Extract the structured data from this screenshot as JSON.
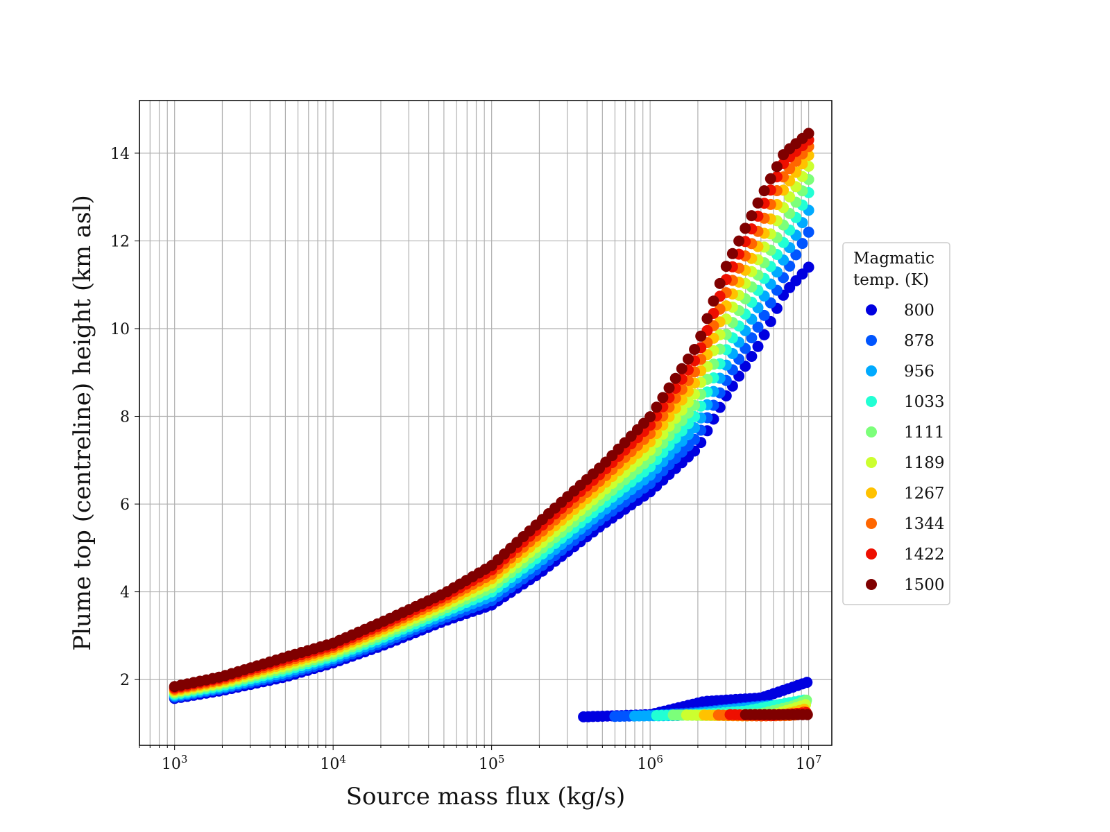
{
  "chart_data": {
    "type": "scatter",
    "xlabel": "Source mass flux (kg/s)",
    "ylabel": "Plume top (centreline) height (km asl)",
    "xscale": "log",
    "xlim": [
      600,
      14000000
    ],
    "ylim": [
      0.5,
      15.2
    ],
    "x_ticks": [
      {
        "value": 1000,
        "base": "10",
        "exp": "3"
      },
      {
        "value": 10000,
        "base": "10",
        "exp": "4"
      },
      {
        "value": 100000,
        "base": "10",
        "exp": "5"
      },
      {
        "value": 1000000,
        "base": "10",
        "exp": "6"
      },
      {
        "value": 10000000,
        "base": "10",
        "exp": "7"
      }
    ],
    "y_ticks": [
      2,
      4,
      6,
      8,
      10,
      12,
      14
    ],
    "grid": true,
    "legend": {
      "title_lines": [
        "Magmatic",
        "temp. (K)"
      ],
      "placement": "outside-right"
    },
    "series": [
      {
        "name": "800",
        "color": "#0000e0",
        "main": [
          [
            1000,
            1.57
          ],
          [
            2000,
            1.75
          ],
          [
            5000,
            2.06
          ],
          [
            10000,
            2.38
          ],
          [
            20000,
            2.76
          ],
          [
            50000,
            3.33
          ],
          [
            100000,
            3.7
          ],
          [
            200000,
            4.42
          ],
          [
            500000,
            5.53
          ],
          [
            1000000,
            6.28
          ],
          [
            2000000,
            7.28
          ],
          [
            3000000,
            8.45
          ],
          [
            5000000,
            9.7
          ],
          [
            7000000,
            10.8
          ],
          [
            10000000,
            11.4
          ]
        ],
        "branch": [
          [
            380000,
            1.15
          ],
          [
            1000000,
            1.2
          ],
          [
            2200000,
            1.5
          ],
          [
            5000000,
            1.58
          ],
          [
            10000000,
            1.95
          ]
        ]
      },
      {
        "name": "878",
        "color": "#0055ff",
        "main": [
          [
            1000,
            1.6
          ],
          [
            2000,
            1.79
          ],
          [
            5000,
            2.11
          ],
          [
            10000,
            2.43
          ],
          [
            20000,
            2.82
          ],
          [
            50000,
            3.4
          ],
          [
            100000,
            3.8
          ],
          [
            200000,
            4.55
          ],
          [
            500000,
            5.68
          ],
          [
            1000000,
            6.47
          ],
          [
            2000000,
            7.55
          ],
          [
            3000000,
            8.8
          ],
          [
            5000000,
            10.15
          ],
          [
            7000000,
            11.2
          ],
          [
            10000000,
            12.2
          ]
        ],
        "branch": [
          [
            600000,
            1.16
          ],
          [
            1000000,
            1.18
          ],
          [
            2000000,
            1.25
          ],
          [
            5000000,
            1.4
          ],
          [
            10000000,
            1.45
          ]
        ]
      },
      {
        "name": "956",
        "color": "#00aaff",
        "main": [
          [
            1000,
            1.63
          ],
          [
            2000,
            1.82
          ],
          [
            5000,
            2.16
          ],
          [
            10000,
            2.48
          ],
          [
            20000,
            2.88
          ],
          [
            50000,
            3.47
          ],
          [
            100000,
            3.9
          ],
          [
            200000,
            4.68
          ],
          [
            500000,
            5.83
          ],
          [
            1000000,
            6.66
          ],
          [
            2000000,
            7.82
          ],
          [
            3000000,
            9.15
          ],
          [
            5000000,
            10.6
          ],
          [
            7000000,
            11.6
          ],
          [
            10000000,
            12.7
          ]
        ],
        "branch": [
          [
            800000,
            1.17
          ],
          [
            1500000,
            1.18
          ],
          [
            3000000,
            1.3
          ],
          [
            5000000,
            1.38
          ],
          [
            10000000,
            1.5
          ]
        ]
      },
      {
        "name": "1033",
        "color": "#22ffd4",
        "main": [
          [
            1000,
            1.66
          ],
          [
            2000,
            1.86
          ],
          [
            5000,
            2.21
          ],
          [
            10000,
            2.53
          ],
          [
            20000,
            2.94
          ],
          [
            50000,
            3.54
          ],
          [
            100000,
            4.0
          ],
          [
            200000,
            4.81
          ],
          [
            500000,
            5.98
          ],
          [
            1000000,
            6.85
          ],
          [
            2000000,
            8.08
          ],
          [
            3000000,
            9.5
          ],
          [
            5000000,
            11.0
          ],
          [
            7000000,
            12.0
          ],
          [
            10000000,
            13.1
          ]
        ],
        "branch": [
          [
            1100000,
            1.18
          ],
          [
            2000000,
            1.2
          ],
          [
            4000000,
            1.28
          ],
          [
            7000000,
            1.45
          ],
          [
            10000000,
            1.55
          ]
        ]
      },
      {
        "name": "1111",
        "color": "#7cff7a",
        "main": [
          [
            1000,
            1.69
          ],
          [
            2000,
            1.9
          ],
          [
            5000,
            2.26
          ],
          [
            10000,
            2.58
          ],
          [
            20000,
            3.0
          ],
          [
            50000,
            3.61
          ],
          [
            100000,
            4.1
          ],
          [
            200000,
            4.94
          ],
          [
            500000,
            6.13
          ],
          [
            1000000,
            7.04
          ],
          [
            2000000,
            8.34
          ],
          [
            3000000,
            9.85
          ],
          [
            5000000,
            11.35
          ],
          [
            7000000,
            12.4
          ],
          [
            10000000,
            13.4
          ]
        ],
        "branch": [
          [
            1400000,
            1.19
          ],
          [
            2500000,
            1.18
          ],
          [
            5000000,
            1.22
          ],
          [
            8000000,
            1.4
          ],
          [
            10000000,
            1.55
          ]
        ]
      },
      {
        "name": "1189",
        "color": "#ccff2f",
        "main": [
          [
            1000,
            1.72
          ],
          [
            2000,
            1.93
          ],
          [
            5000,
            2.31
          ],
          [
            10000,
            2.63
          ],
          [
            20000,
            3.06
          ],
          [
            50000,
            3.68
          ],
          [
            100000,
            4.2
          ],
          [
            200000,
            5.07
          ],
          [
            500000,
            6.28
          ],
          [
            1000000,
            7.23
          ],
          [
            2000000,
            8.6
          ],
          [
            3000000,
            10.2
          ],
          [
            5000000,
            11.7
          ],
          [
            7000000,
            12.8
          ],
          [
            10000000,
            13.7
          ]
        ],
        "branch": [
          [
            1700000,
            1.19
          ],
          [
            3000000,
            1.18
          ],
          [
            6000000,
            1.2
          ],
          [
            10000000,
            1.45
          ]
        ]
      },
      {
        "name": "1267",
        "color": "#ffc200",
        "main": [
          [
            1000,
            1.75
          ],
          [
            2000,
            1.97
          ],
          [
            5000,
            2.36
          ],
          [
            10000,
            2.68
          ],
          [
            20000,
            3.12
          ],
          [
            50000,
            3.75
          ],
          [
            100000,
            4.3
          ],
          [
            200000,
            5.2
          ],
          [
            500000,
            6.43
          ],
          [
            1000000,
            7.42
          ],
          [
            2000000,
            8.86
          ],
          [
            3000000,
            10.5
          ],
          [
            5000000,
            12.0
          ],
          [
            7000000,
            13.2
          ],
          [
            10000000,
            13.95
          ]
        ],
        "branch": [
          [
            2200000,
            1.19
          ],
          [
            4000000,
            1.17
          ],
          [
            7000000,
            1.2
          ],
          [
            10000000,
            1.35
          ]
        ]
      },
      {
        "name": "1344",
        "color": "#ff6600",
        "main": [
          [
            1000,
            1.78
          ],
          [
            2000,
            2.0
          ],
          [
            5000,
            2.41
          ],
          [
            10000,
            2.73
          ],
          [
            20000,
            3.18
          ],
          [
            50000,
            3.82
          ],
          [
            100000,
            4.4
          ],
          [
            200000,
            5.33
          ],
          [
            500000,
            6.58
          ],
          [
            1000000,
            7.61
          ],
          [
            2000000,
            9.12
          ],
          [
            3000000,
            10.8
          ],
          [
            5000000,
            12.35
          ],
          [
            7000000,
            13.5
          ],
          [
            10000000,
            14.15
          ]
        ],
        "branch": [
          [
            2700000,
            1.19
          ],
          [
            5000000,
            1.17
          ],
          [
            8000000,
            1.18
          ],
          [
            10000000,
            1.3
          ]
        ]
      },
      {
        "name": "1422",
        "color": "#ee0f00",
        "main": [
          [
            1000,
            1.81
          ],
          [
            2000,
            2.04
          ],
          [
            5000,
            2.46
          ],
          [
            10000,
            2.78
          ],
          [
            20000,
            3.24
          ],
          [
            50000,
            3.89
          ],
          [
            100000,
            4.5
          ],
          [
            200000,
            5.46
          ],
          [
            500000,
            6.73
          ],
          [
            1000000,
            7.8
          ],
          [
            2000000,
            9.38
          ],
          [
            3000000,
            11.1
          ],
          [
            5000000,
            12.7
          ],
          [
            7000000,
            13.8
          ],
          [
            10000000,
            14.3
          ]
        ],
        "branch": [
          [
            3200000,
            1.2
          ],
          [
            6000000,
            1.18
          ],
          [
            10000000,
            1.25
          ]
        ]
      },
      {
        "name": "1500",
        "color": "#7f0000",
        "main": [
          [
            1000,
            1.84
          ],
          [
            2000,
            2.07
          ],
          [
            5000,
            2.51
          ],
          [
            10000,
            2.83
          ],
          [
            20000,
            3.3
          ],
          [
            50000,
            3.96
          ],
          [
            100000,
            4.6
          ],
          [
            200000,
            5.59
          ],
          [
            500000,
            6.88
          ],
          [
            1000000,
            7.99
          ],
          [
            2000000,
            9.64
          ],
          [
            3000000,
            11.4
          ],
          [
            5000000,
            13.0
          ],
          [
            7000000,
            14.0
          ],
          [
            10000000,
            14.45
          ]
        ],
        "branch": [
          [
            4000000,
            1.2
          ],
          [
            7000000,
            1.2
          ],
          [
            10000000,
            1.2
          ]
        ]
      }
    ]
  }
}
